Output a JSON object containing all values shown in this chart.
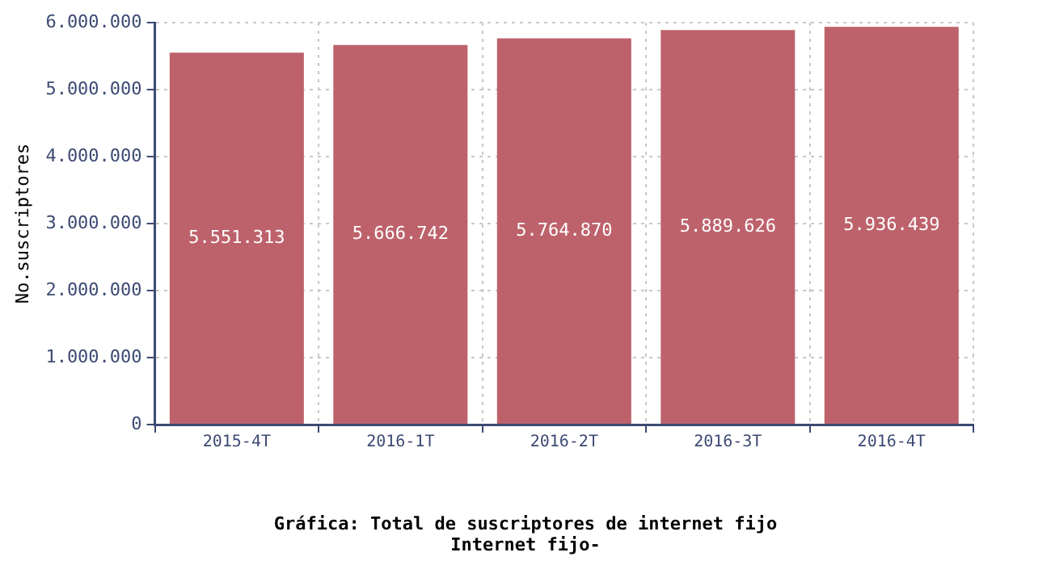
{
  "chart_data": {
    "type": "bar",
    "title": "Gráfica: Total de suscriptores de internet fijo",
    "subtitle": "Internet fijo-",
    "ylabel": "No.suscriptores",
    "categories": [
      "2015-4T",
      "2016-1T",
      "2016-2T",
      "2016-3T",
      "2016-4T"
    ],
    "values": [
      5551313,
      5666742,
      5764870,
      5889626,
      5936439
    ],
    "value_labels": [
      "5.551.313",
      "5.666.742",
      "5.764.870",
      "5.889.626",
      "5.936.439"
    ],
    "color": "#bd626b",
    "ylim": [
      0,
      6000000
    ],
    "yticks": [
      {
        "value": 0,
        "label": "0"
      },
      {
        "value": 1000000,
        "label": "1.000.000"
      },
      {
        "value": 2000000,
        "label": "2.000.000"
      },
      {
        "value": 3000000,
        "label": "3.000.000"
      },
      {
        "value": 4000000,
        "label": "4.000.000"
      },
      {
        "value": 5000000,
        "label": "5.000.000"
      },
      {
        "value": 6000000,
        "label": "6.000.000"
      }
    ],
    "grid": true,
    "legend": false
  }
}
